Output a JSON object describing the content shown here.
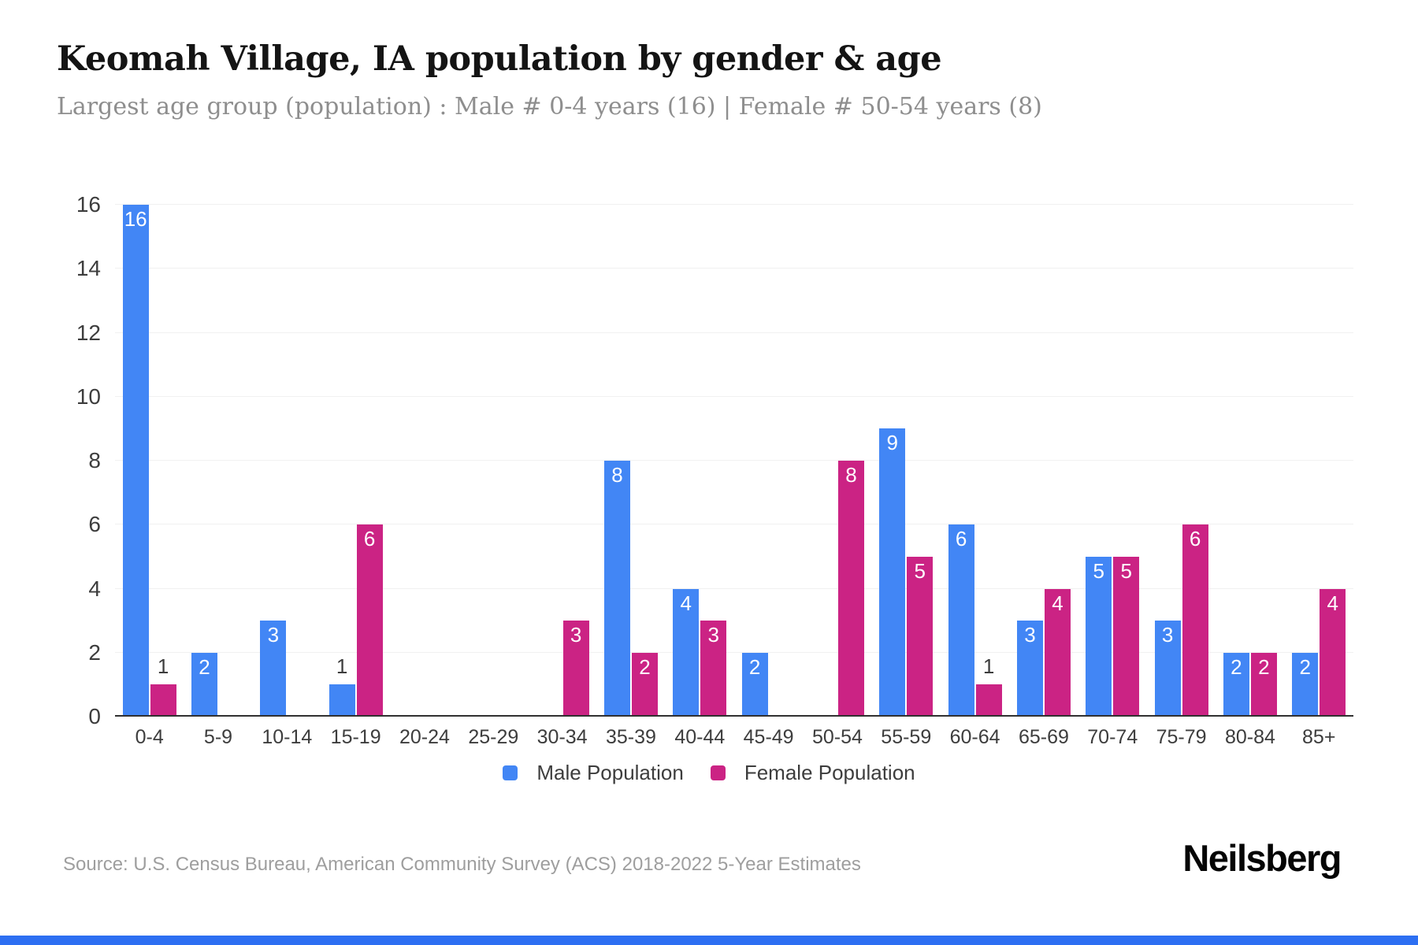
{
  "header": {
    "title": "Keomah Village, IA population by gender & age",
    "subtitle": "Largest age group (population) : Male # 0-4 years (16) | Female # 50-54 years (8)"
  },
  "chart_data": {
    "type": "bar",
    "title": "Keomah Village, IA population by gender & age",
    "categories": [
      "0-4",
      "5-9",
      "10-14",
      "15-19",
      "20-24",
      "25-29",
      "30-34",
      "35-39",
      "40-44",
      "45-49",
      "50-54",
      "55-59",
      "60-64",
      "65-69",
      "70-74",
      "75-79",
      "80-84",
      "85+"
    ],
    "series": [
      {
        "name": "Male Population",
        "color": "#4286f5",
        "values": [
          16,
          2,
          3,
          1,
          0,
          0,
          0,
          8,
          4,
          2,
          0,
          9,
          6,
          3,
          5,
          3,
          2,
          2
        ]
      },
      {
        "name": "Female Population",
        "color": "#cb2384",
        "values": [
          1,
          0,
          0,
          6,
          0,
          0,
          3,
          2,
          3,
          0,
          8,
          5,
          1,
          4,
          5,
          6,
          2,
          4
        ]
      }
    ],
    "xlabel": "",
    "ylabel": "",
    "ylim": [
      0,
      16
    ],
    "yticks": [
      0,
      2,
      4,
      6,
      8,
      10,
      12,
      14,
      16
    ],
    "grid": "horizontal",
    "legend_position": "bottom",
    "bar_label_inside_color": "#ffffff",
    "bar_label_outside_color": "#3d3d3d"
  },
  "footer": {
    "source": "Source: U.S. Census Bureau, American Community Survey (ACS) 2018-2022 5-Year Estimates",
    "logo": "Neilsberg"
  },
  "colors": {
    "male": "#4286f5",
    "female": "#cb2384",
    "accent_bar": "#2d6ff2",
    "gridline": "#f1f1f1",
    "axis_line": "#303030"
  }
}
